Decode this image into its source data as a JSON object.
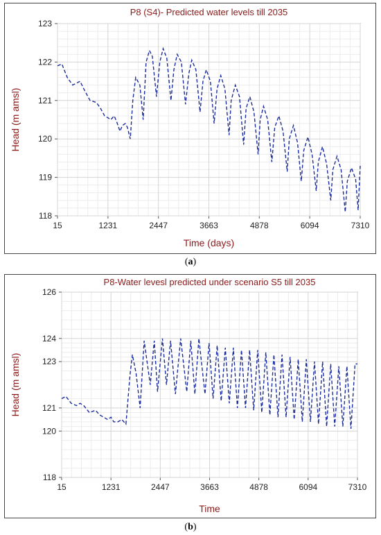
{
  "captions": {
    "a_letter": "a",
    "b_letter": "b"
  },
  "chart_data": [
    {
      "type": "line",
      "title": "P8 (S4)- Predicted water levels till 2035",
      "xlabel": "Time (days)",
      "ylabel": "Head (m amsl)",
      "title_color": "#8b1a1a",
      "series_color": "#1a2b9c",
      "xlim": [
        15,
        7310
      ],
      "ylim": [
        118,
        123
      ],
      "xticks": [
        "15",
        "1231",
        "2447",
        "3663",
        "4878",
        "6094",
        "7310"
      ],
      "yticks": [
        "118",
        "119",
        "120",
        "121",
        "122",
        "123"
      ],
      "grid": true,
      "series": [
        {
          "x": [
            15,
            120,
            250,
            380,
            470,
            560,
            650,
            800,
            950,
            1050,
            1150,
            1231,
            1300,
            1380,
            1440,
            1520,
            1580,
            1650,
            1700,
            1770,
            1830,
            1900,
            2000,
            2080,
            2150,
            2230,
            2300,
            2400,
            2480,
            2560,
            2650,
            2750,
            2820,
            2900,
            3000,
            3100,
            3180,
            3250,
            3350,
            3450,
            3520,
            3600,
            3700,
            3790,
            3860,
            3950,
            4050,
            4150,
            4200,
            4300,
            4400,
            4500,
            4560,
            4650,
            4750,
            4850,
            4900,
            4980,
            5080,
            5180,
            5250,
            5350,
            5450,
            5550,
            5600,
            5700,
            5800,
            5890,
            5950,
            6050,
            6150,
            6250,
            6300,
            6400,
            6500,
            6600,
            6650,
            6750,
            6850,
            6950,
            7000,
            7100,
            7200,
            7260,
            7310
          ],
          "y": [
            121.9,
            121.95,
            121.6,
            121.4,
            121.45,
            121.5,
            121.3,
            121.0,
            120.95,
            120.8,
            120.6,
            120.55,
            120.5,
            120.6,
            120.45,
            120.2,
            120.35,
            120.4,
            120.3,
            120.0,
            121.0,
            121.6,
            121.4,
            120.5,
            122.0,
            122.3,
            122.15,
            121.1,
            122.0,
            122.35,
            122.1,
            121.0,
            121.8,
            122.2,
            122.0,
            120.9,
            121.7,
            122.05,
            121.8,
            120.7,
            121.5,
            121.8,
            121.5,
            120.4,
            121.3,
            121.65,
            121.3,
            120.1,
            121.0,
            121.4,
            121.1,
            119.85,
            120.8,
            121.1,
            120.7,
            119.6,
            120.5,
            120.85,
            120.5,
            119.4,
            120.3,
            120.6,
            120.2,
            119.15,
            120.0,
            120.35,
            119.9,
            118.9,
            119.7,
            120.05,
            119.6,
            118.65,
            119.4,
            119.8,
            119.35,
            118.4,
            119.2,
            119.55,
            119.2,
            118.1,
            118.9,
            119.25,
            118.95,
            118.15,
            119.3
          ]
        }
      ]
    },
    {
      "type": "line",
      "title": "P8-Water levesl predicted under scenario S5 till 2035",
      "xlabel": "Time",
      "ylabel": "Head (m amsl)",
      "title_color": "#8b1a1a",
      "series_color": "#1a2b9c",
      "xlim": [
        15,
        7310
      ],
      "ylim": [
        118,
        126
      ],
      "xticks": [
        "15",
        "1231",
        "2447",
        "3663",
        "4878",
        "6094",
        "7310"
      ],
      "yticks": [
        "118",
        "120",
        "121",
        "123",
        "124",
        "126"
      ],
      "ytick_values": [
        118,
        120,
        121,
        123,
        124,
        126
      ],
      "grid": true,
      "series": [
        {
          "x": [
            15,
            120,
            250,
            380,
            470,
            560,
            700,
            850,
            950,
            1050,
            1150,
            1231,
            1300,
            1400,
            1500,
            1600,
            1700,
            1760,
            1850,
            1950,
            2050,
            2200,
            2300,
            2380,
            2500,
            2600,
            2700,
            2820,
            2950,
            3100,
            3200,
            3300,
            3400,
            3550,
            3650,
            3750,
            3850,
            3950,
            4050,
            4150,
            4250,
            4350,
            4450,
            4550,
            4650,
            4750,
            4850,
            4950,
            5050,
            5150,
            5250,
            5350,
            5450,
            5550,
            5650,
            5750,
            5850,
            5950,
            6050,
            6150,
            6250,
            6350,
            6450,
            6550,
            6650,
            6750,
            6850,
            6950,
            7050,
            7150,
            7250,
            7310
          ],
          "y": [
            121.4,
            121.5,
            121.2,
            121.1,
            121.2,
            121.1,
            120.8,
            120.9,
            120.7,
            120.6,
            120.5,
            120.6,
            120.4,
            120.4,
            120.5,
            120.3,
            122.4,
            123.3,
            122.5,
            121.0,
            123.9,
            122.0,
            123.9,
            121.7,
            124.0,
            122.0,
            123.9,
            121.6,
            124.0,
            121.7,
            123.9,
            121.6,
            124.0,
            121.6,
            123.8,
            121.4,
            123.7,
            121.3,
            123.6,
            121.2,
            123.6,
            121.0,
            123.5,
            121.0,
            123.5,
            120.9,
            123.5,
            120.8,
            123.4,
            120.7,
            123.3,
            120.6,
            123.3,
            120.6,
            123.2,
            120.5,
            123.1,
            120.4,
            123.1,
            120.4,
            123.0,
            120.3,
            123.0,
            120.2,
            122.9,
            120.2,
            122.8,
            120.2,
            122.8,
            120.1,
            122.9,
            122.9
          ]
        }
      ]
    }
  ]
}
